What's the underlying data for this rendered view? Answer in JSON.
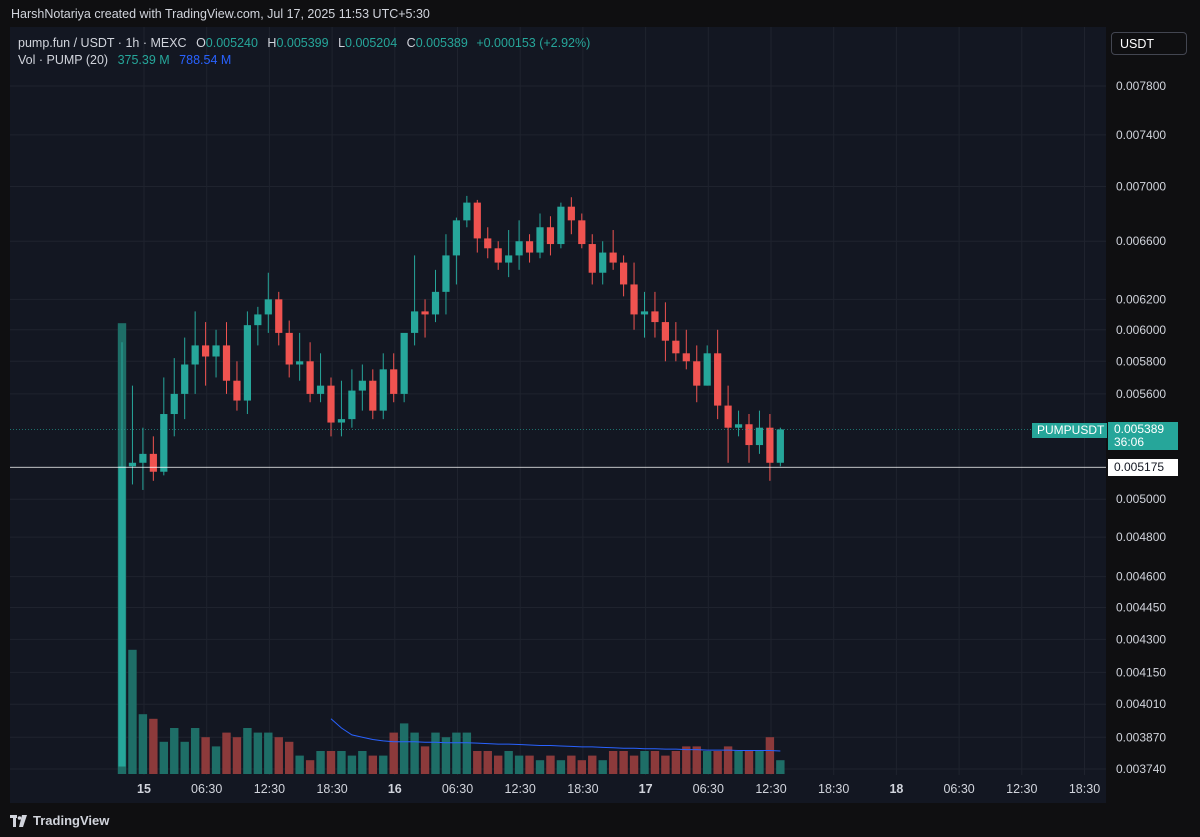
{
  "header": {
    "created_by": "HarshNotariya created with TradingView.com, Jul 17, 2025 11:53 UTC+5:30"
  },
  "legend": {
    "symbol": "pump.fun / USDT · 1h · MEXC",
    "o_label": "O",
    "o_value": "0.005240",
    "h_label": "H",
    "h_value": "0.005399",
    "l_label": "L",
    "l_value": "0.005204",
    "c_label": "C",
    "c_value": "0.005389",
    "change": "+0.000153 (+2.92%)",
    "vol_label": "Vol · PUMP (20)",
    "vol_value": "375.39 M",
    "vol_ma_value": "788.54 M"
  },
  "currency_button": "USDT",
  "price_label": {
    "symbol": "PUMPUSDT",
    "price": "0.005389",
    "countdown": "36:06"
  },
  "crosshair_label": "0.005175",
  "brand": "TradingView",
  "colors": {
    "up": "#26a69a",
    "down": "#ef5350",
    "background": "#131722",
    "grid": "#1f232e",
    "volume_ma": "#2962ff"
  },
  "chart_data": {
    "type": "candlestick",
    "interval": "1h",
    "y_scale": "log",
    "y_ticks": [
      "0.007800",
      "0.007400",
      "0.007000",
      "0.006600",
      "0.006200",
      "0.006000",
      "0.005800",
      "0.005600",
      "0.005000",
      "0.004800",
      "0.004600",
      "0.004450",
      "0.004300",
      "0.004150",
      "0.004010",
      "0.003870",
      "0.003740"
    ],
    "x_ticks": [
      "15",
      "06:30",
      "12:30",
      "18:30",
      "16",
      "06:30",
      "12:30",
      "18:30",
      "17",
      "06:30",
      "12:30",
      "18:30",
      "18",
      "06:30",
      "12:30",
      "18:30"
    ],
    "x_ticks_bold": [
      true,
      false,
      false,
      false,
      true,
      false,
      false,
      false,
      true,
      false,
      false,
      false,
      true,
      false,
      false,
      false
    ],
    "candles": [
      {
        "o": 0.00375,
        "h": 0.00592,
        "l": 0.00375,
        "c": 0.00518
      },
      {
        "o": 0.00518,
        "h": 0.00565,
        "l": 0.00508,
        "c": 0.0052
      },
      {
        "o": 0.0052,
        "h": 0.0054,
        "l": 0.00505,
        "c": 0.00525
      },
      {
        "o": 0.00525,
        "h": 0.00535,
        "l": 0.0051,
        "c": 0.00515
      },
      {
        "o": 0.00515,
        "h": 0.0057,
        "l": 0.00513,
        "c": 0.00548
      },
      {
        "o": 0.00548,
        "h": 0.00582,
        "l": 0.00535,
        "c": 0.0056
      },
      {
        "o": 0.0056,
        "h": 0.00595,
        "l": 0.00545,
        "c": 0.00578
      },
      {
        "o": 0.00578,
        "h": 0.00612,
        "l": 0.0056,
        "c": 0.0059
      },
      {
        "o": 0.0059,
        "h": 0.00605,
        "l": 0.00565,
        "c": 0.00583
      },
      {
        "o": 0.00583,
        "h": 0.006,
        "l": 0.0057,
        "c": 0.0059
      },
      {
        "o": 0.0059,
        "h": 0.00605,
        "l": 0.0056,
        "c": 0.00568
      },
      {
        "o": 0.00568,
        "h": 0.0058,
        "l": 0.0055,
        "c": 0.00556
      },
      {
        "o": 0.00556,
        "h": 0.00612,
        "l": 0.00548,
        "c": 0.00603
      },
      {
        "o": 0.00603,
        "h": 0.00615,
        "l": 0.0059,
        "c": 0.0061
      },
      {
        "o": 0.0061,
        "h": 0.00638,
        "l": 0.00598,
        "c": 0.0062
      },
      {
        "o": 0.0062,
        "h": 0.00625,
        "l": 0.0059,
        "c": 0.00598
      },
      {
        "o": 0.00598,
        "h": 0.00606,
        "l": 0.0057,
        "c": 0.00578
      },
      {
        "o": 0.00578,
        "h": 0.00598,
        "l": 0.00568,
        "c": 0.0058
      },
      {
        "o": 0.0058,
        "h": 0.00592,
        "l": 0.00555,
        "c": 0.0056
      },
      {
        "o": 0.0056,
        "h": 0.00585,
        "l": 0.00555,
        "c": 0.00565
      },
      {
        "o": 0.00565,
        "h": 0.0057,
        "l": 0.00535,
        "c": 0.00543
      },
      {
        "o": 0.00543,
        "h": 0.00568,
        "l": 0.00535,
        "c": 0.00545
      },
      {
        "o": 0.00545,
        "h": 0.00575,
        "l": 0.0054,
        "c": 0.00562
      },
      {
        "o": 0.00562,
        "h": 0.00578,
        "l": 0.0055,
        "c": 0.00568
      },
      {
        "o": 0.00568,
        "h": 0.00575,
        "l": 0.00545,
        "c": 0.0055
      },
      {
        "o": 0.0055,
        "h": 0.00585,
        "l": 0.00545,
        "c": 0.00575
      },
      {
        "o": 0.00575,
        "h": 0.00585,
        "l": 0.00555,
        "c": 0.0056
      },
      {
        "o": 0.0056,
        "h": 0.00595,
        "l": 0.00555,
        "c": 0.00598
      },
      {
        "o": 0.00598,
        "h": 0.0065,
        "l": 0.0059,
        "c": 0.00612
      },
      {
        "o": 0.00612,
        "h": 0.0062,
        "l": 0.00595,
        "c": 0.0061
      },
      {
        "o": 0.0061,
        "h": 0.0064,
        "l": 0.00605,
        "c": 0.00625
      },
      {
        "o": 0.00625,
        "h": 0.00665,
        "l": 0.0061,
        "c": 0.0065
      },
      {
        "o": 0.0065,
        "h": 0.00677,
        "l": 0.0063,
        "c": 0.00675
      },
      {
        "o": 0.00675,
        "h": 0.00693,
        "l": 0.0067,
        "c": 0.00688
      },
      {
        "o": 0.00688,
        "h": 0.0069,
        "l": 0.00652,
        "c": 0.00662
      },
      {
        "o": 0.00662,
        "h": 0.0067,
        "l": 0.00648,
        "c": 0.00655
      },
      {
        "o": 0.00655,
        "h": 0.0066,
        "l": 0.0064,
        "c": 0.00645
      },
      {
        "o": 0.00645,
        "h": 0.00668,
        "l": 0.00635,
        "c": 0.0065
      },
      {
        "o": 0.0065,
        "h": 0.00675,
        "l": 0.0064,
        "c": 0.0066
      },
      {
        "o": 0.0066,
        "h": 0.00665,
        "l": 0.00645,
        "c": 0.00652
      },
      {
        "o": 0.00652,
        "h": 0.0068,
        "l": 0.00648,
        "c": 0.0067
      },
      {
        "o": 0.0067,
        "h": 0.00678,
        "l": 0.0065,
        "c": 0.00658
      },
      {
        "o": 0.00658,
        "h": 0.00688,
        "l": 0.00655,
        "c": 0.00685
      },
      {
        "o": 0.00685,
        "h": 0.00692,
        "l": 0.00665,
        "c": 0.00675
      },
      {
        "o": 0.00675,
        "h": 0.0068,
        "l": 0.00655,
        "c": 0.00658
      },
      {
        "o": 0.00658,
        "h": 0.00665,
        "l": 0.0063,
        "c": 0.00638
      },
      {
        "o": 0.00638,
        "h": 0.0066,
        "l": 0.0063,
        "c": 0.00652
      },
      {
        "o": 0.00652,
        "h": 0.00668,
        "l": 0.0064,
        "c": 0.00645
      },
      {
        "o": 0.00645,
        "h": 0.0065,
        "l": 0.00622,
        "c": 0.0063
      },
      {
        "o": 0.0063,
        "h": 0.00645,
        "l": 0.006,
        "c": 0.0061
      },
      {
        "o": 0.0061,
        "h": 0.00625,
        "l": 0.00595,
        "c": 0.00612
      },
      {
        "o": 0.00612,
        "h": 0.00625,
        "l": 0.00595,
        "c": 0.00605
      },
      {
        "o": 0.00605,
        "h": 0.00618,
        "l": 0.0058,
        "c": 0.00593
      },
      {
        "o": 0.00593,
        "h": 0.00605,
        "l": 0.0058,
        "c": 0.00585
      },
      {
        "o": 0.00585,
        "h": 0.006,
        "l": 0.00575,
        "c": 0.0058
      },
      {
        "o": 0.0058,
        "h": 0.0059,
        "l": 0.00555,
        "c": 0.00565
      },
      {
        "o": 0.00565,
        "h": 0.0059,
        "l": 0.00565,
        "c": 0.00585
      },
      {
        "o": 0.00585,
        "h": 0.006,
        "l": 0.00545,
        "c": 0.00553
      },
      {
        "o": 0.00553,
        "h": 0.00565,
        "l": 0.0052,
        "c": 0.0054
      },
      {
        "o": 0.0054,
        "h": 0.0055,
        "l": 0.00535,
        "c": 0.00542
      },
      {
        "o": 0.00542,
        "h": 0.00548,
        "l": 0.0052,
        "c": 0.0053
      },
      {
        "o": 0.0053,
        "h": 0.0055,
        "l": 0.00525,
        "c": 0.0054
      },
      {
        "o": 0.0054,
        "h": 0.00548,
        "l": 0.0051,
        "c": 0.0052
      },
      {
        "o": 0.0052,
        "h": 0.0054,
        "l": 0.00518,
        "c": 0.00539
      }
    ],
    "volume": [
      0.98,
      0.27,
      0.13,
      0.12,
      0.07,
      0.1,
      0.07,
      0.1,
      0.08,
      0.06,
      0.09,
      0.08,
      0.1,
      0.09,
      0.09,
      0.08,
      0.07,
      0.04,
      0.03,
      0.05,
      0.05,
      0.05,
      0.04,
      0.05,
      0.04,
      0.04,
      0.09,
      0.11,
      0.09,
      0.06,
      0.09,
      0.08,
      0.09,
      0.09,
      0.05,
      0.05,
      0.04,
      0.05,
      0.04,
      0.04,
      0.03,
      0.04,
      0.03,
      0.04,
      0.03,
      0.04,
      0.03,
      0.05,
      0.05,
      0.04,
      0.05,
      0.05,
      0.04,
      0.05,
      0.06,
      0.06,
      0.05,
      0.05,
      0.06,
      0.05,
      0.05,
      0.05,
      0.08,
      0.03
    ],
    "volume_ma": [
      null,
      null,
      null,
      null,
      null,
      null,
      null,
      null,
      null,
      null,
      null,
      null,
      null,
      null,
      null,
      null,
      null,
      null,
      null,
      null,
      0.12,
      0.1,
      0.085,
      0.08,
      0.075,
      0.072,
      0.07,
      0.07,
      0.07,
      0.069,
      0.069,
      0.068,
      0.068,
      0.068,
      0.067,
      0.066,
      0.065,
      0.065,
      0.064,
      0.063,
      0.062,
      0.062,
      0.061,
      0.06,
      0.059,
      0.059,
      0.058,
      0.057,
      0.056,
      0.056,
      0.055,
      0.055,
      0.054,
      0.054,
      0.053,
      0.053,
      0.052,
      0.052,
      0.052,
      0.051,
      0.051,
      0.051,
      0.051,
      0.05
    ],
    "current_price": 0.005389,
    "crosshair_price": 0.005175
  }
}
